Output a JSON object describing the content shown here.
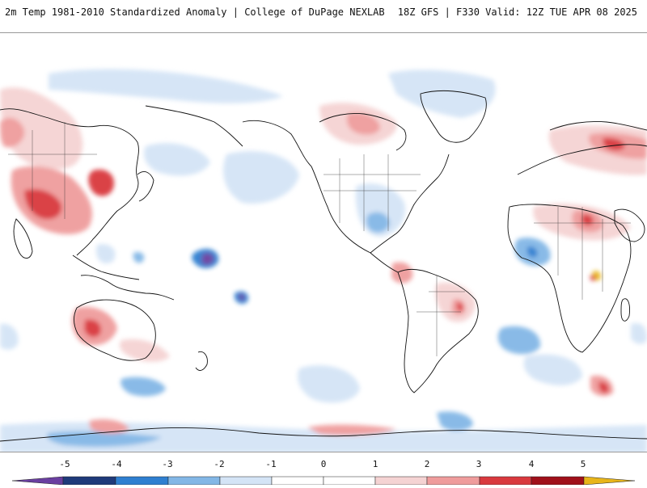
{
  "header": {
    "left_title": "2m Temp 1981-2010 Standardized Anomaly | College of DuPage NEXLAB",
    "right_title": "18Z GFS | F330 Valid: 12Z TUE APR 08 2025"
  },
  "map": {
    "projection": "global-cylindrical",
    "palette": {
      "-5": "#6a3fa0",
      "-4": "#1f3a7a",
      "-3": "#2f7fd0",
      "-2": "#83b7e6",
      "-1": "#d4e4f6",
      "0": "#ffffff",
      "1": "#f5d3d3",
      "2": "#ef9c9c",
      "3": "#d9393e",
      "4": "#a0101a",
      "5": "#e8b51a"
    }
  },
  "colorbar": {
    "labels": [
      "-5",
      "-4",
      "-3",
      "-2",
      "-1",
      "0",
      "1",
      "2",
      "3",
      "4",
      "5"
    ]
  }
}
